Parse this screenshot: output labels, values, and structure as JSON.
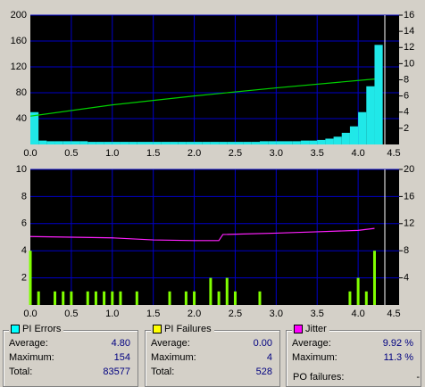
{
  "chart_data": [
    {
      "type": "combo",
      "x": [
        0,
        0.1,
        0.2,
        0.3,
        0.4,
        0.5,
        0.6,
        0.7,
        0.8,
        0.9,
        1,
        1.1,
        1.2,
        1.3,
        1.4,
        1.5,
        1.6,
        1.7,
        1.8,
        1.9,
        2,
        2.1,
        2.2,
        2.3,
        2.4,
        2.5,
        2.6,
        2.7,
        2.8,
        2.9,
        3,
        3.1,
        3.2,
        3.3,
        3.4,
        3.5,
        3.6,
        3.7,
        3.8,
        3.9,
        4,
        4.1,
        4.2
      ],
      "series": [
        {
          "name": "PI Errors",
          "type": "bar",
          "color": "#20e8e8",
          "values": [
            50,
            6,
            5,
            5,
            5,
            5,
            5,
            4,
            4,
            4,
            4,
            4,
            4,
            4,
            4,
            4,
            4,
            4,
            4,
            4,
            4,
            4,
            4,
            4,
            4,
            4,
            4,
            4,
            5,
            5,
            5,
            5,
            5,
            6,
            6,
            7,
            9,
            12,
            18,
            28,
            50,
            90,
            154
          ]
        },
        {
          "type": "line",
          "axis": "y2",
          "color": "#00d000",
          "x": [
            0,
            1,
            2,
            3,
            4.2
          ],
          "values": [
            3.5,
            4.9,
            6.0,
            7.0,
            8.1
          ]
        }
      ],
      "xlim": [
        0,
        4.5
      ],
      "xticks": [
        {
          "value": 0,
          "label": "0.0"
        },
        0.5,
        {
          "value": 1,
          "label": "1.0"
        },
        1.5,
        {
          "value": 2,
          "label": "2.0"
        },
        2.5,
        {
          "value": 3,
          "label": "3.0"
        },
        3.5,
        {
          "value": 4,
          "label": "4.0"
        },
        4.5
      ],
      "ylim": [
        0,
        200
      ],
      "yticks": [
        40,
        80,
        120,
        160,
        200
      ],
      "y2lim": [
        0,
        16
      ],
      "y2ticks": [
        2,
        4,
        6,
        8,
        10,
        12,
        14,
        16
      ],
      "grid": true
    },
    {
      "type": "combo",
      "x": [
        0,
        0.1,
        0.2,
        0.3,
        0.4,
        0.5,
        0.6,
        0.7,
        0.8,
        0.9,
        1,
        1.1,
        1.2,
        1.3,
        1.4,
        1.5,
        1.6,
        1.7,
        1.8,
        1.9,
        2,
        2.1,
        2.2,
        2.3,
        2.4,
        2.5,
        2.6,
        2.7,
        2.8,
        2.9,
        3,
        3.1,
        3.2,
        3.3,
        3.4,
        3.5,
        3.6,
        3.7,
        3.8,
        3.9,
        4,
        4.1,
        4.2
      ],
      "series": [
        {
          "name": "PI Failures",
          "type": "bar",
          "color": "#80ff00",
          "values": [
            4,
            1,
            0,
            1,
            1,
            1,
            0,
            1,
            1,
            1,
            1,
            1,
            0,
            1,
            0,
            0,
            0,
            1,
            0,
            1,
            1,
            0,
            2,
            1,
            2,
            1,
            0,
            0,
            1,
            0,
            0,
            0,
            0,
            0,
            0,
            0,
            0,
            0,
            0,
            1,
            2,
            1,
            4
          ]
        },
        {
          "name": "Jitter",
          "type": "line",
          "axis": "y2",
          "color": "#ff20ff",
          "x": [
            0,
            0.5,
            1,
            1.5,
            2,
            2.3,
            2.35,
            3,
            3.5,
            4,
            4.2
          ],
          "values": [
            10.1,
            10.0,
            9.9,
            9.6,
            9.5,
            9.5,
            10.4,
            10.6,
            10.8,
            11.0,
            11.3
          ]
        }
      ],
      "xlim": [
        0,
        4.5
      ],
      "xticks": [
        {
          "value": 0,
          "label": "0.0"
        },
        0.5,
        {
          "value": 1,
          "label": "1.0"
        },
        1.5,
        {
          "value": 2,
          "label": "2.0"
        },
        2.5,
        {
          "value": 3,
          "label": "3.0"
        },
        3.5,
        {
          "value": 4,
          "label": "4.0"
        },
        4.5
      ],
      "ylim": [
        0,
        10
      ],
      "yticks": [
        2,
        4,
        6,
        8,
        10
      ],
      "y2lim": [
        0,
        20
      ],
      "y2ticks": [
        4,
        8,
        12,
        16,
        20
      ],
      "grid": true
    }
  ],
  "stats": [
    {
      "color": "#00ffff",
      "rows": [
        [
          "Average:",
          "4.80"
        ],
        [
          "Maximum:",
          "154"
        ],
        [
          "Total:",
          "83577"
        ]
      ]
    },
    {
      "color": "#ffff00",
      "rows": [
        [
          "Average:",
          "0.00"
        ],
        [
          "Maximum:",
          "4"
        ],
        [
          "Total:",
          "528"
        ]
      ]
    },
    {
      "color": "#ff00ff",
      "rows": [
        [
          "Average:",
          "9.92 %"
        ],
        [
          "Maximum:",
          "11.3 %"
        ]
      ],
      "extra": [
        "PO failures:",
        "-"
      ]
    }
  ]
}
